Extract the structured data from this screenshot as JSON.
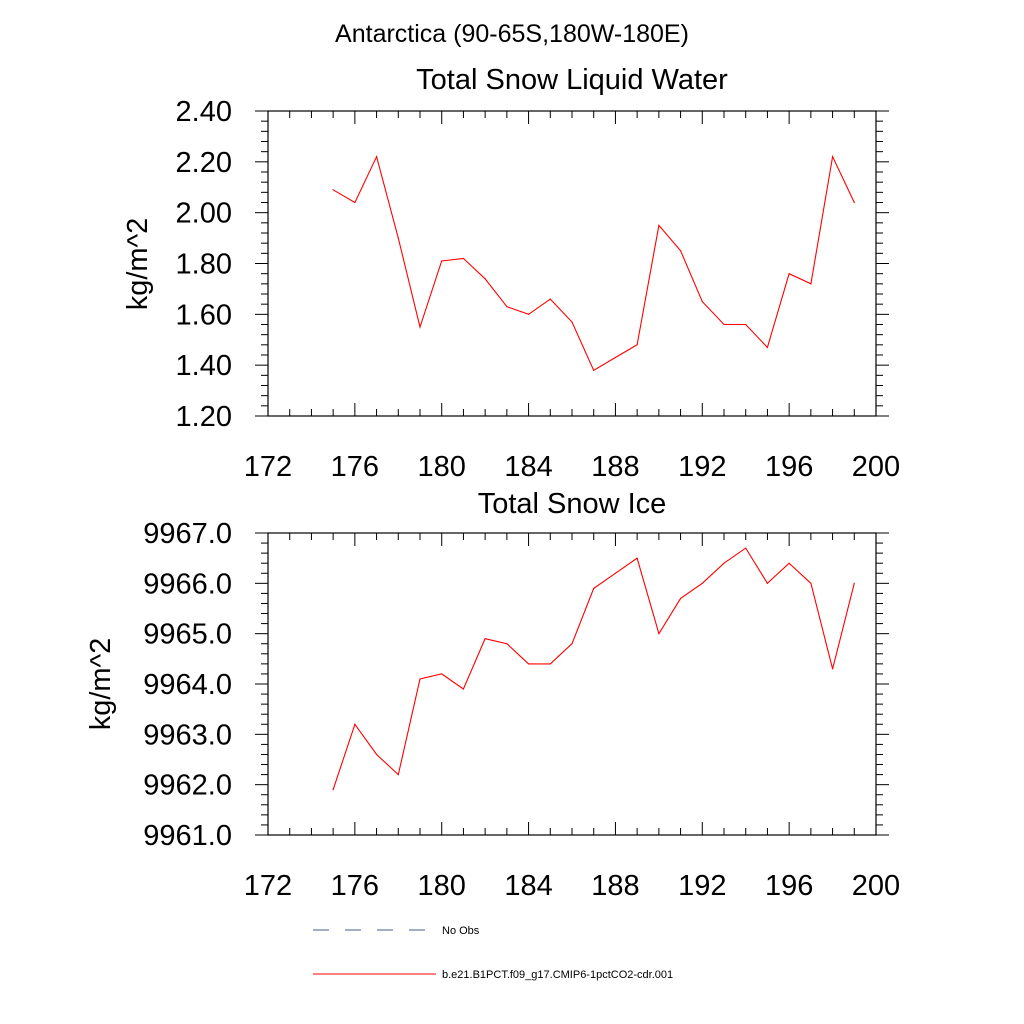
{
  "figure": {
    "title": "Antarctica (90-65S,180W-180E)"
  },
  "chart_data": [
    {
      "type": "line",
      "title": "Total Snow Liquid Water",
      "xlabel": "",
      "ylabel": "kg/m^2",
      "xlim": [
        172,
        200
      ],
      "ylim": [
        1.2,
        2.4
      ],
      "xticks": [
        "172",
        "176",
        "180",
        "184",
        "188",
        "192",
        "196",
        "200"
      ],
      "yticks": [
        "1.20",
        "1.40",
        "1.60",
        "1.80",
        "2.00",
        "2.20",
        "2.40"
      ],
      "grid": false,
      "series": [
        {
          "name": "b.e21.B1PCT.f09_g17.CMIP6-1pctCO2-cdr.001",
          "color": "#ff0000",
          "x": [
            175,
            176,
            177,
            178,
            179,
            180,
            181,
            182,
            183,
            184,
            185,
            186,
            187,
            188,
            189,
            190,
            191,
            192,
            193,
            194,
            195,
            196,
            197,
            198,
            199
          ],
          "y": [
            2.09,
            2.04,
            2.22,
            1.9,
            1.55,
            1.81,
            1.82,
            1.74,
            1.63,
            1.6,
            1.66,
            1.57,
            1.38,
            1.43,
            1.48,
            1.95,
            1.85,
            1.65,
            1.56,
            1.56,
            1.47,
            1.76,
            1.72,
            2.22,
            2.04
          ]
        }
      ]
    },
    {
      "type": "line",
      "title": "Total Snow Ice",
      "xlabel": "",
      "ylabel": "kg/m^2",
      "xlim": [
        172,
        200
      ],
      "ylim": [
        9961.0,
        9967.0
      ],
      "xticks": [
        "172",
        "176",
        "180",
        "184",
        "188",
        "192",
        "196",
        "200"
      ],
      "yticks": [
        "9961.0",
        "9962.0",
        "9963.0",
        "9964.0",
        "9965.0",
        "9966.0",
        "9967.0"
      ],
      "grid": false,
      "series": [
        {
          "name": "b.e21.B1PCT.f09_g17.CMIP6-1pctCO2-cdr.001",
          "color": "#ff0000",
          "x": [
            175,
            176,
            177,
            178,
            179,
            180,
            181,
            182,
            183,
            184,
            185,
            186,
            187,
            188,
            189,
            190,
            191,
            192,
            193,
            194,
            195,
            196,
            197,
            198,
            199
          ],
          "y": [
            9961.9,
            9963.2,
            9962.6,
            9962.2,
            9964.1,
            9964.2,
            9963.9,
            9964.9,
            9964.8,
            9964.4,
            9964.4,
            9964.8,
            9965.9,
            9966.2,
            9966.5,
            9965.0,
            9965.7,
            9966.0,
            9966.4,
            9966.7,
            9966.0,
            9966.4,
            9966.0,
            9964.3,
            9966.0
          ]
        }
      ]
    }
  ],
  "legend": {
    "placement": "bottom",
    "entries": [
      {
        "label": "No Obs",
        "style": "dashed",
        "color": "#4b5a8c"
      },
      {
        "label": "b.e21.B1PCT.f09_g17.CMIP6-1pctCO2-cdr.001",
        "style": "solid",
        "color": "#ff0000"
      }
    ]
  }
}
